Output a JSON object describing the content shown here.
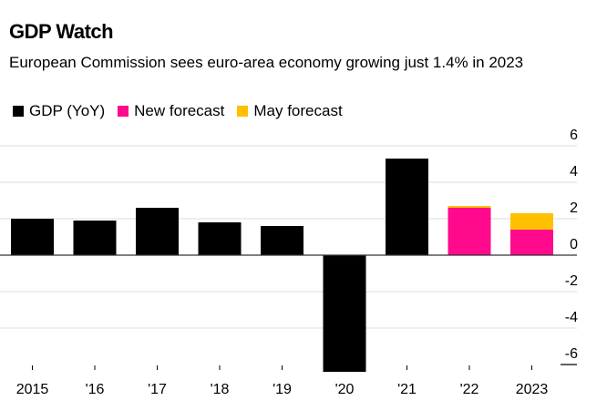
{
  "chart_data": {
    "type": "bar",
    "title": "GDP Watch",
    "subtitle": "European Commission sees euro-area economy growing just 1.4% in 2023",
    "categories": [
      "2015",
      "'16",
      "'17",
      "'18",
      "'19",
      "'20",
      "'21",
      "'22",
      "2023"
    ],
    "series": [
      {
        "name": "GDP (YoY)",
        "color": "#000000",
        "values": [
          2.0,
          1.9,
          2.6,
          1.8,
          1.6,
          -6.4,
          5.3,
          null,
          null
        ]
      },
      {
        "name": "New forecast",
        "color": "#ff0a8c",
        "values": [
          null,
          null,
          null,
          null,
          null,
          null,
          null,
          2.6,
          1.4
        ]
      },
      {
        "name": "May forecast",
        "color": "#ffc000",
        "values": [
          null,
          null,
          null,
          null,
          null,
          null,
          null,
          2.7,
          2.3
        ]
      }
    ],
    "xlabel": "",
    "ylabel": "",
    "ylim": [
      -6.4,
      6
    ],
    "yticks": [
      6,
      4,
      2,
      0,
      -2,
      -4,
      -6
    ],
    "ytick_labels": [
      "6",
      "4",
      "2",
      "0",
      "-2",
      "-4",
      "-6"
    ],
    "y_axis_side": "right",
    "grid": true,
    "legend": "top-left"
  }
}
